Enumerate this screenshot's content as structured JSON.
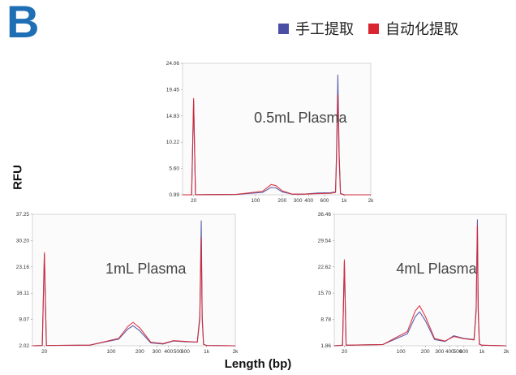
{
  "panel_letter": "B",
  "legend": [
    {
      "label": "手工提取",
      "color": "#4a4fa3"
    },
    {
      "label": "自动化提取",
      "color": "#d9252f"
    }
  ],
  "y_title": "RFU",
  "x_title": "Length (bp)",
  "chart_data": [
    {
      "type": "line",
      "title": "0.5mL Plasma",
      "x_scale": "log",
      "xlim": [
        15,
        2000
      ],
      "xticks": [
        20,
        100,
        200,
        300,
        400,
        600,
        1000,
        2000
      ],
      "xtick_labels": [
        "20",
        "100",
        "200",
        "300",
        "400",
        "600",
        "1k",
        "2k"
      ],
      "ylim": [
        0.99,
        24.06
      ],
      "yticks": [
        0.99,
        5.6,
        10.22,
        14.83,
        19.45,
        24.06
      ],
      "ytick_labels": [
        "0.99",
        "5.60",
        "10.22",
        "14.83",
        "19.45",
        "24.06"
      ],
      "series": [
        {
          "color": "#4a4fa3",
          "x": [
            15,
            19,
            20,
            21,
            60,
            120,
            150,
            170,
            200,
            260,
            350,
            500,
            700,
            800,
            820,
            850,
            880,
            910,
            1000,
            2000
          ],
          "y": [
            0.99,
            1.0,
            17.5,
            1.0,
            1.05,
            1.4,
            2.3,
            2.2,
            1.5,
            1.1,
            1.1,
            1.3,
            1.35,
            1.5,
            8.0,
            22.0,
            8.0,
            1.2,
            1.0,
            0.99
          ]
        },
        {
          "color": "#d9252f",
          "x": [
            15,
            19,
            20,
            21,
            60,
            120,
            150,
            170,
            200,
            260,
            350,
            500,
            700,
            800,
            820,
            850,
            880,
            910,
            1000,
            2000
          ],
          "y": [
            0.99,
            1.0,
            17.9,
            1.0,
            1.05,
            1.6,
            2.8,
            2.6,
            1.7,
            1.1,
            1.1,
            1.2,
            1.25,
            1.4,
            7.0,
            18.5,
            7.0,
            1.2,
            1.0,
            0.99
          ]
        }
      ]
    },
    {
      "type": "line",
      "title": "1mL Plasma",
      "x_scale": "log",
      "xlim": [
        15,
        2000
      ],
      "xticks": [
        20,
        100,
        200,
        300,
        400,
        500,
        600,
        1000,
        2000
      ],
      "xtick_labels": [
        "20",
        "100",
        "200",
        "300",
        "400",
        "500",
        "600",
        "1k",
        "2k"
      ],
      "ylim": [
        2.02,
        37.25
      ],
      "yticks": [
        2.02,
        9.07,
        16.11,
        23.16,
        30.2,
        37.25
      ],
      "ytick_labels": [
        "2.02",
        "9.07",
        "16.11",
        "23.16",
        "30.20",
        "37.25"
      ],
      "series": [
        {
          "color": "#4a4fa3",
          "x": [
            15,
            19,
            20,
            21,
            60,
            120,
            150,
            170,
            200,
            260,
            350,
            450,
            600,
            800,
            850,
            880,
            900,
            930,
            1000,
            2000
          ],
          "y": [
            2.02,
            2.1,
            26.5,
            2.1,
            2.2,
            3.8,
            6.5,
            7.4,
            6.0,
            2.8,
            2.5,
            3.3,
            3.1,
            3.0,
            10.0,
            35.5,
            10.0,
            2.4,
            2.1,
            2.02
          ]
        },
        {
          "color": "#d9252f",
          "x": [
            15,
            19,
            20,
            21,
            60,
            120,
            150,
            170,
            200,
            260,
            350,
            450,
            600,
            800,
            850,
            880,
            900,
            930,
            1000,
            2000
          ],
          "y": [
            2.02,
            2.1,
            27.0,
            2.1,
            2.2,
            4.0,
            7.2,
            8.3,
            6.8,
            3.0,
            2.6,
            3.4,
            3.2,
            3.0,
            9.0,
            31.0,
            9.0,
            2.4,
            2.1,
            2.02
          ]
        }
      ]
    },
    {
      "type": "line",
      "title": "4mL Plasma",
      "x_scale": "log",
      "xlim": [
        15,
        2000
      ],
      "xticks": [
        20,
        100,
        200,
        300,
        400,
        500,
        600,
        1000,
        2000
      ],
      "xtick_labels": [
        "20",
        "100",
        "200",
        "300",
        "400",
        "500",
        "600",
        "1k",
        "2k"
      ],
      "ylim": [
        1.86,
        36.46
      ],
      "yticks": [
        1.86,
        8.78,
        15.7,
        22.62,
        29.54,
        36.46
      ],
      "ytick_labels": [
        "1.86",
        "8.78",
        "15.70",
        "22.62",
        "29.54",
        "36.46"
      ],
      "series": [
        {
          "color": "#4a4fa3",
          "x": [
            15,
            19,
            20,
            21,
            60,
            120,
            150,
            170,
            200,
            260,
            350,
            450,
            600,
            800,
            850,
            880,
            900,
            930,
            1000,
            2000
          ],
          "y": [
            1.86,
            2.0,
            24.0,
            2.0,
            2.2,
            5.0,
            9.5,
            10.8,
            8.5,
            3.5,
            3.0,
            4.5,
            3.8,
            3.5,
            12.0,
            35.0,
            12.0,
            2.3,
            2.0,
            1.86
          ]
        },
        {
          "color": "#d9252f",
          "x": [
            15,
            19,
            20,
            21,
            60,
            120,
            150,
            170,
            200,
            260,
            350,
            450,
            600,
            800,
            850,
            880,
            900,
            930,
            1000,
            2000
          ],
          "y": [
            1.86,
            2.0,
            24.5,
            2.0,
            2.2,
            5.6,
            11.0,
            12.4,
            9.6,
            3.8,
            3.1,
            4.3,
            3.7,
            3.4,
            11.0,
            33.5,
            11.0,
            2.3,
            2.0,
            1.86
          ]
        }
      ]
    }
  ]
}
